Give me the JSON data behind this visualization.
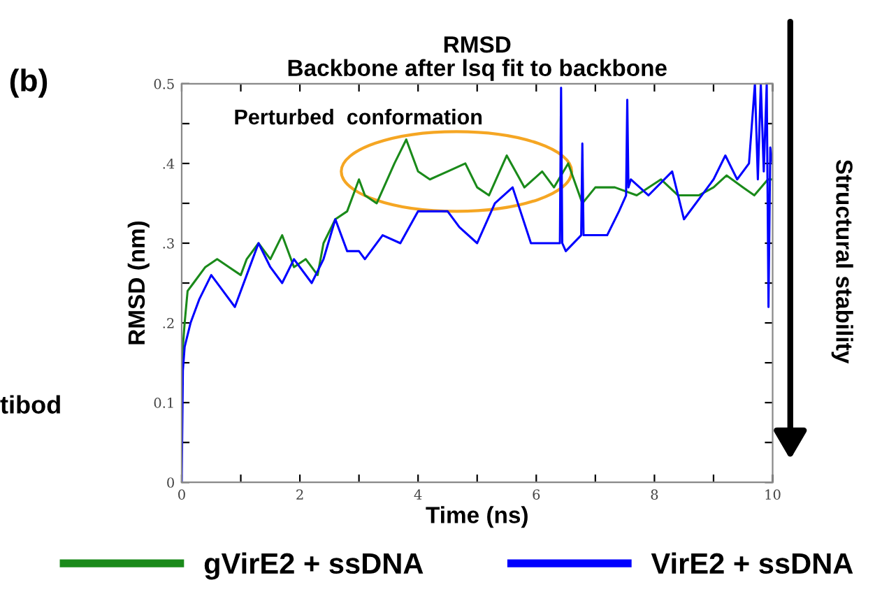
{
  "chart_data": {
    "type": "line",
    "title": "RMSD\nBackbone after lsq fit to backbone",
    "xlabel": "Time (ns)",
    "ylabel": "RMSD (nm)",
    "annotations": [
      "(b)",
      "Perturbed  conformation",
      "Structural stability",
      "tibod"
    ],
    "xlim": [
      0,
      10
    ],
    "ylim": [
      0,
      0.5
    ],
    "xticks": [
      0,
      {
        "value": 1,
        "label": null
      },
      2,
      {
        "value": 3,
        "label": null
      },
      4,
      {
        "value": 5,
        "label": null
      },
      6,
      {
        "value": 7,
        "label": null
      },
      8,
      {
        "value": 9,
        "label": null
      },
      10
    ],
    "yticks": [
      0,
      {
        "value": 0.05,
        "label": null
      },
      {
        "value": 0.1,
        "label": "0.1"
      },
      {
        "value": 0.15,
        "label": null
      },
      {
        "value": 0.2,
        "label": ".2"
      },
      {
        "value": 0.25,
        "label": null
      },
      {
        "value": 0.3,
        "label": ".3"
      },
      {
        "value": 0.35,
        "label": null
      },
      {
        "value": 0.4,
        "label": ".4"
      },
      {
        "value": 0.45,
        "label": null
      },
      {
        "value": 0.5,
        "label": "0.5"
      }
    ],
    "grid": false,
    "legend": "bottom",
    "line_style": "solid",
    "marker": "none",
    "series": [
      {
        "name": "gVirE2 + ssDNA",
        "color": "#1a8a1a",
        "x": [
          0,
          0.05,
          0.1,
          0.2,
          0.4,
          0.6,
          0.8,
          1.0,
          1.1,
          1.3,
          1.5,
          1.7,
          1.9,
          2.1,
          2.3,
          2.4,
          2.6,
          2.8,
          3.0,
          3.1,
          3.3,
          3.6,
          3.8,
          4.0,
          4.2,
          4.5,
          4.8,
          5.0,
          5.2,
          5.5,
          5.8,
          6.1,
          6.3,
          6.54,
          6.78,
          7.0,
          7.33,
          7.7,
          8.11,
          8.4,
          8.75,
          9.0,
          9.22,
          9.5,
          9.69,
          9.92,
          10
        ],
        "values": [
          0.15,
          0.2,
          0.24,
          0.25,
          0.27,
          0.28,
          0.27,
          0.26,
          0.28,
          0.3,
          0.28,
          0.31,
          0.27,
          0.28,
          0.26,
          0.3,
          0.33,
          0.34,
          0.38,
          0.36,
          0.35,
          0.4,
          0.43,
          0.39,
          0.38,
          0.39,
          0.4,
          0.37,
          0.36,
          0.41,
          0.37,
          0.39,
          0.37,
          0.4,
          0.35,
          0.37,
          0.37,
          0.36,
          0.38,
          0.36,
          0.36,
          0.37,
          0.385,
          0.37,
          0.36,
          0.38,
          0.38
        ]
      },
      {
        "name": "VirE2 + ssDNA",
        "color": "#0000ff",
        "x": [
          0,
          0.02,
          0.05,
          0.15,
          0.3,
          0.5,
          0.7,
          0.9,
          1.1,
          1.3,
          1.5,
          1.7,
          1.9,
          2.2,
          2.4,
          2.6,
          2.8,
          3.0,
          3.1,
          3.4,
          3.7,
          4.0,
          4.5,
          4.7,
          5.0,
          5.3,
          5.6,
          5.91,
          6.3,
          6.4,
          6.42,
          6.44,
          6.5,
          6.76,
          6.78,
          6.8,
          6.9,
          7.2,
          7.4,
          7.52,
          7.54,
          7.56,
          7.6,
          7.9,
          8.3,
          8.5,
          8.8,
          9.0,
          9.2,
          9.4,
          9.6,
          9.7,
          9.75,
          9.8,
          9.85,
          9.9,
          9.93,
          9.96,
          10
        ],
        "values": [
          0,
          0.14,
          0.17,
          0.2,
          0.23,
          0.26,
          0.24,
          0.22,
          0.26,
          0.3,
          0.27,
          0.25,
          0.28,
          0.25,
          0.28,
          0.33,
          0.29,
          0.29,
          0.28,
          0.31,
          0.3,
          0.34,
          0.34,
          0.32,
          0.3,
          0.35,
          0.37,
          0.3,
          0.3,
          0.3,
          0.495,
          0.3,
          0.29,
          0.31,
          0.425,
          0.31,
          0.31,
          0.31,
          0.34,
          0.36,
          0.48,
          0.37,
          0.38,
          0.36,
          0.39,
          0.33,
          0.36,
          0.38,
          0.41,
          0.38,
          0.4,
          0.5,
          0.38,
          0.5,
          0.39,
          0.5,
          0.22,
          0.42,
          0.4
        ]
      }
    ]
  }
}
